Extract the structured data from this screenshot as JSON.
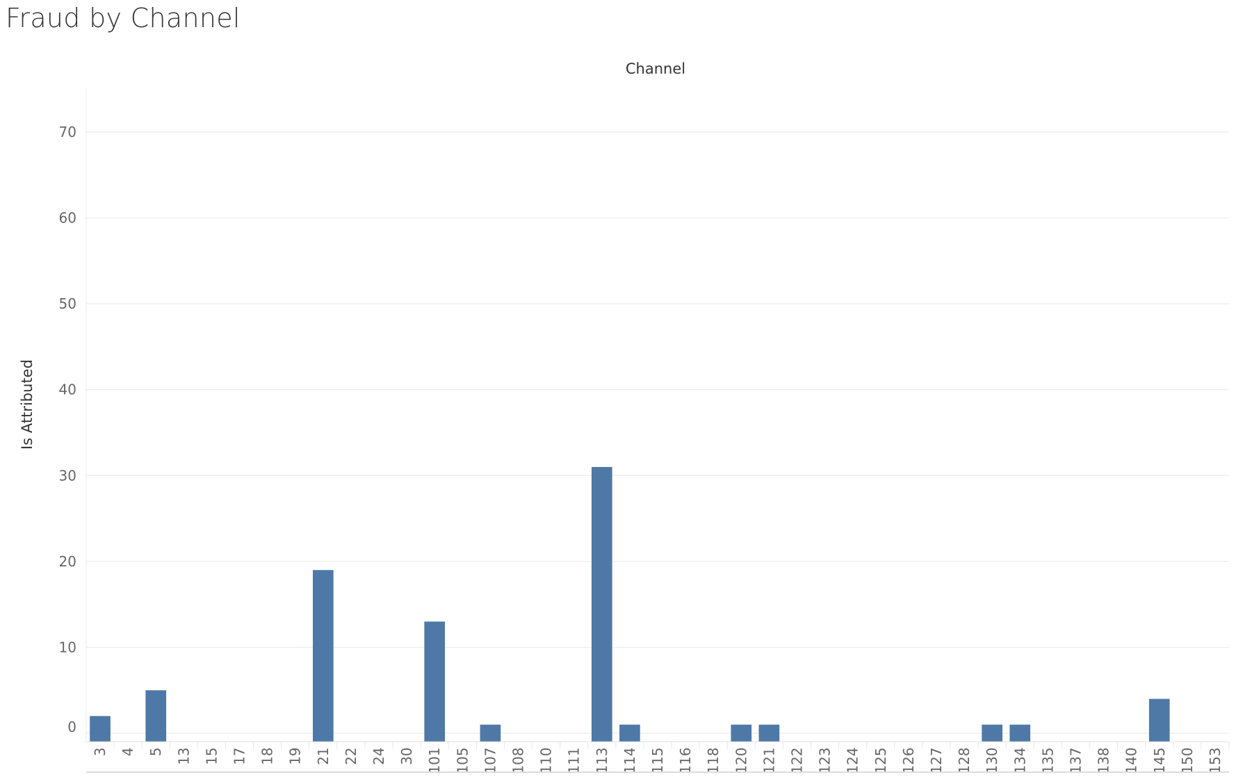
{
  "page": {
    "title": "Fraud by Channel"
  },
  "chart_data": {
    "type": "bar",
    "title": "Fraud by Channel",
    "xlabel": "Channel",
    "ylabel": "Is Attributed",
    "xlabel_position": "top",
    "categories": [
      "3",
      "4",
      "5",
      "13",
      "15",
      "17",
      "18",
      "19",
      "21",
      "22",
      "24",
      "30",
      "101",
      "105",
      "107",
      "108",
      "110",
      "111",
      "113",
      "114",
      "115",
      "116",
      "118",
      "120",
      "121",
      "122",
      "123",
      "124",
      "125",
      "126",
      "127",
      "128",
      "130",
      "134",
      "135",
      "137",
      "138",
      "140",
      "145",
      "150",
      "153"
    ],
    "values": [
      2,
      0,
      5,
      0,
      0,
      0,
      0,
      0,
      19,
      0,
      0,
      0,
      13,
      0,
      1,
      0,
      0,
      0,
      31,
      1,
      0,
      0,
      0,
      1,
      1,
      0,
      0,
      0,
      0,
      0,
      0,
      0,
      1,
      1,
      0,
      0,
      0,
      0,
      4,
      0,
      0
    ],
    "yticks": [
      0,
      10,
      20,
      30,
      40,
      50,
      60,
      70
    ],
    "ylim": [
      -1,
      75
    ],
    "grid": true,
    "bar_color": "#4e79a7",
    "grid_color": "#ebebeb",
    "tick_label_color": "#666666",
    "axis_title_color": "#333333"
  }
}
